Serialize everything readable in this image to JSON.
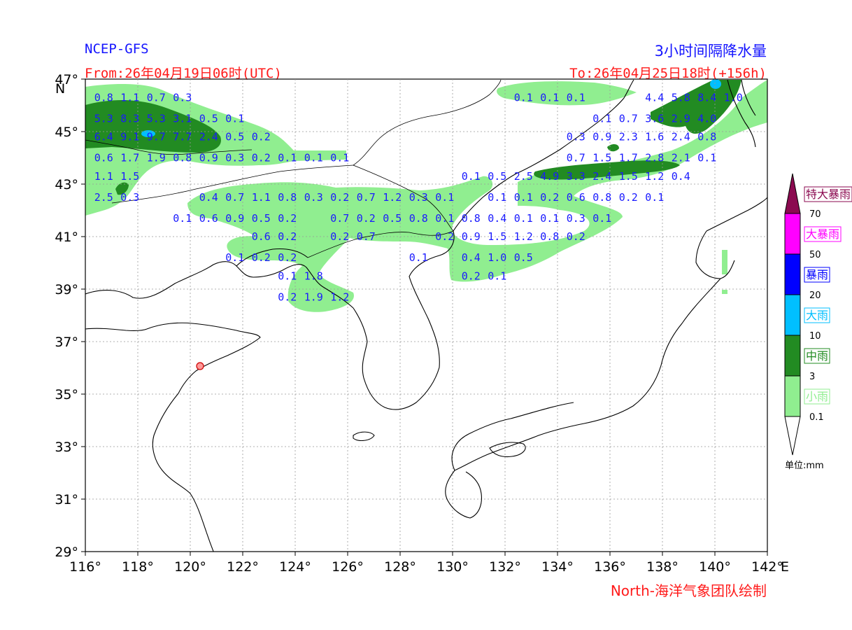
{
  "header": {
    "model": "NCEP-GFS",
    "title": "3小时间隔降水量",
    "from": "From:26年04月19日06时(UTC)",
    "to": "To:26年04月25日18时(+156h)",
    "credit": "North-海洋气象团队绘制"
  },
  "axes": {
    "lon_ticks": [
      "116°",
      "118°",
      "120°",
      "122°",
      "124°",
      "126°",
      "128°",
      "130°",
      "132°",
      "134°",
      "136°",
      "138°",
      "140°",
      "142°"
    ],
    "lon_values": [
      116,
      118,
      120,
      122,
      124,
      126,
      128,
      130,
      132,
      134,
      136,
      138,
      140,
      142
    ],
    "lat_ticks": [
      "47°",
      "45°",
      "43°",
      "41°",
      "39°",
      "37°",
      "35°",
      "33°",
      "31°",
      "29°"
    ],
    "lat_values": [
      47,
      45,
      43,
      41,
      39,
      37,
      35,
      33,
      31,
      29
    ],
    "east_label": "E",
    "north_label": "N",
    "lon_range": [
      116,
      142
    ],
    "lat_range": [
      29,
      47
    ]
  },
  "legend": {
    "unit": "单位:mm",
    "colors": {
      "light": "#90ee90",
      "moderate": "#228b22",
      "heavy": "#00bfff",
      "storm": "#0000ff",
      "big_storm": "#ff00ff",
      "extreme": "#8b0a50"
    },
    "classes": [
      {
        "label": "小雨",
        "color": "#90ee90"
      },
      {
        "label": "中雨",
        "color": "#228b22"
      },
      {
        "label": "大雨",
        "color": "#00bfff"
      },
      {
        "label": "暴雨",
        "color": "#0000ff"
      },
      {
        "label": "大暴雨",
        "color": "#ff00ff"
      },
      {
        "label": "特大暴雨",
        "color": "#8b0a50"
      }
    ],
    "thresholds": [
      "0.1",
      "3",
      "10",
      "20",
      "50",
      "70"
    ]
  },
  "grid_values": [
    {
      "lon": 116.7,
      "lat": 46.3,
      "t": "0.8"
    },
    {
      "lon": 117.7,
      "lat": 46.3,
      "t": "1.1"
    },
    {
      "lon": 118.7,
      "lat": 46.3,
      "t": "0.7"
    },
    {
      "lon": 119.7,
      "lat": 46.3,
      "t": "0.3"
    },
    {
      "lon": 116.7,
      "lat": 45.5,
      "t": "5.3"
    },
    {
      "lon": 117.7,
      "lat": 45.5,
      "t": "8.3"
    },
    {
      "lon": 118.7,
      "lat": 45.5,
      "t": "5.3"
    },
    {
      "lon": 119.7,
      "lat": 45.5,
      "t": "3.1"
    },
    {
      "lon": 120.7,
      "lat": 45.5,
      "t": "0.5"
    },
    {
      "lon": 121.7,
      "lat": 45.5,
      "t": "0.1"
    },
    {
      "lon": 116.7,
      "lat": 44.8,
      "t": "6.4"
    },
    {
      "lon": 117.7,
      "lat": 44.8,
      "t": "9.1"
    },
    {
      "lon": 118.7,
      "lat": 44.8,
      "t": "9.7"
    },
    {
      "lon": 119.7,
      "lat": 44.8,
      "t": "7.7"
    },
    {
      "lon": 120.7,
      "lat": 44.8,
      "t": "2.4"
    },
    {
      "lon": 121.7,
      "lat": 44.8,
      "t": "0.5"
    },
    {
      "lon": 122.7,
      "lat": 44.8,
      "t": "0.2"
    },
    {
      "lon": 116.7,
      "lat": 44.0,
      "t": "0.6"
    },
    {
      "lon": 117.7,
      "lat": 44.0,
      "t": "1.7"
    },
    {
      "lon": 118.7,
      "lat": 44.0,
      "t": "1.9"
    },
    {
      "lon": 119.7,
      "lat": 44.0,
      "t": "0.8"
    },
    {
      "lon": 120.7,
      "lat": 44.0,
      "t": "0.9"
    },
    {
      "lon": 121.7,
      "lat": 44.0,
      "t": "0.3"
    },
    {
      "lon": 122.7,
      "lat": 44.0,
      "t": "0.2"
    },
    {
      "lon": 123.7,
      "lat": 44.0,
      "t": "0.1"
    },
    {
      "lon": 124.7,
      "lat": 44.0,
      "t": "0.1"
    },
    {
      "lon": 125.7,
      "lat": 44.0,
      "t": "0.1"
    },
    {
      "lon": 116.7,
      "lat": 43.3,
      "t": "1.1"
    },
    {
      "lon": 117.7,
      "lat": 43.3,
      "t": "1.5"
    },
    {
      "lon": 116.7,
      "lat": 42.5,
      "t": "2.5"
    },
    {
      "lon": 117.7,
      "lat": 42.5,
      "t": "0.3"
    },
    {
      "lon": 120.7,
      "lat": 42.5,
      "t": "0.4"
    },
    {
      "lon": 121.7,
      "lat": 42.5,
      "t": "0.7"
    },
    {
      "lon": 122.7,
      "lat": 42.5,
      "t": "1.1"
    },
    {
      "lon": 123.7,
      "lat": 42.5,
      "t": "0.8"
    },
    {
      "lon": 124.7,
      "lat": 42.5,
      "t": "0.3"
    },
    {
      "lon": 125.7,
      "lat": 42.5,
      "t": "0.2"
    },
    {
      "lon": 126.7,
      "lat": 42.5,
      "t": "0.7"
    },
    {
      "lon": 127.7,
      "lat": 42.5,
      "t": "1.2"
    },
    {
      "lon": 128.7,
      "lat": 42.5,
      "t": "0.3"
    },
    {
      "lon": 129.7,
      "lat": 42.5,
      "t": "0.1"
    },
    {
      "lon": 119.7,
      "lat": 41.7,
      "t": "0.1"
    },
    {
      "lon": 120.7,
      "lat": 41.7,
      "t": "0.6"
    },
    {
      "lon": 121.7,
      "lat": 41.7,
      "t": "0.9"
    },
    {
      "lon": 122.7,
      "lat": 41.7,
      "t": "0.5"
    },
    {
      "lon": 123.7,
      "lat": 41.7,
      "t": "0.2"
    },
    {
      "lon": 125.7,
      "lat": 41.7,
      "t": "0.7"
    },
    {
      "lon": 126.7,
      "lat": 41.7,
      "t": "0.2"
    },
    {
      "lon": 127.7,
      "lat": 41.7,
      "t": "0.5"
    },
    {
      "lon": 128.7,
      "lat": 41.7,
      "t": "0.8"
    },
    {
      "lon": 129.7,
      "lat": 41.7,
      "t": "0.1"
    },
    {
      "lon": 122.7,
      "lat": 41.0,
      "t": "0.6"
    },
    {
      "lon": 123.7,
      "lat": 41.0,
      "t": "0.2"
    },
    {
      "lon": 125.7,
      "lat": 41.0,
      "t": "0.2"
    },
    {
      "lon": 126.7,
      "lat": 41.0,
      "t": "0.7"
    },
    {
      "lon": 121.7,
      "lat": 40.2,
      "t": "0.1"
    },
    {
      "lon": 122.7,
      "lat": 40.2,
      "t": "0.2"
    },
    {
      "lon": 123.7,
      "lat": 40.2,
      "t": "0.2"
    },
    {
      "lon": 128.7,
      "lat": 40.2,
      "t": "0.1"
    },
    {
      "lon": 123.7,
      "lat": 39.5,
      "t": "0.1"
    },
    {
      "lon": 124.7,
      "lat": 39.5,
      "t": "1.8"
    },
    {
      "lon": 123.7,
      "lat": 38.7,
      "t": "0.2"
    },
    {
      "lon": 124.7,
      "lat": 38.7,
      "t": "1.9"
    },
    {
      "lon": 125.7,
      "lat": 38.7,
      "t": "1.2"
    },
    {
      "lon": 132.7,
      "lat": 46.3,
      "t": "0.1"
    },
    {
      "lon": 133.7,
      "lat": 46.3,
      "t": "0.1"
    },
    {
      "lon": 134.7,
      "lat": 46.3,
      "t": "0.1"
    },
    {
      "lon": 137.7,
      "lat": 46.3,
      "t": "4.4"
    },
    {
      "lon": 138.7,
      "lat": 46.3,
      "t": "5.8"
    },
    {
      "lon": 139.7,
      "lat": 46.3,
      "t": "8.4"
    },
    {
      "lon": 140.7,
      "lat": 46.3,
      "t": "1.0"
    },
    {
      "lon": 135.7,
      "lat": 45.5,
      "t": "0.1"
    },
    {
      "lon": 136.7,
      "lat": 45.5,
      "t": "0.7"
    },
    {
      "lon": 137.7,
      "lat": 45.5,
      "t": "3.6"
    },
    {
      "lon": 138.7,
      "lat": 45.5,
      "t": "2.9"
    },
    {
      "lon": 139.7,
      "lat": 45.5,
      "t": "4.0"
    },
    {
      "lon": 134.7,
      "lat": 44.8,
      "t": "0.3"
    },
    {
      "lon": 135.7,
      "lat": 44.8,
      "t": "0.9"
    },
    {
      "lon": 136.7,
      "lat": 44.8,
      "t": "2.3"
    },
    {
      "lon": 137.7,
      "lat": 44.8,
      "t": "1.6"
    },
    {
      "lon": 138.7,
      "lat": 44.8,
      "t": "2.4"
    },
    {
      "lon": 139.7,
      "lat": 44.8,
      "t": "0.8"
    },
    {
      "lon": 134.7,
      "lat": 44.0,
      "t": "0.7"
    },
    {
      "lon": 135.7,
      "lat": 44.0,
      "t": "1.5"
    },
    {
      "lon": 136.7,
      "lat": 44.0,
      "t": "1.7"
    },
    {
      "lon": 137.7,
      "lat": 44.0,
      "t": "2.8"
    },
    {
      "lon": 138.7,
      "lat": 44.0,
      "t": "2.1"
    },
    {
      "lon": 139.7,
      "lat": 44.0,
      "t": "0.1"
    },
    {
      "lon": 130.7,
      "lat": 43.3,
      "t": "0.1"
    },
    {
      "lon": 131.7,
      "lat": 43.3,
      "t": "0.5"
    },
    {
      "lon": 132.7,
      "lat": 43.3,
      "t": "2.5"
    },
    {
      "lon": 133.7,
      "lat": 43.3,
      "t": "4.9"
    },
    {
      "lon": 134.7,
      "lat": 43.3,
      "t": "3.3"
    },
    {
      "lon": 135.7,
      "lat": 43.3,
      "t": "2.4"
    },
    {
      "lon": 136.7,
      "lat": 43.3,
      "t": "1.5"
    },
    {
      "lon": 137.7,
      "lat": 43.3,
      "t": "1.2"
    },
    {
      "lon": 138.7,
      "lat": 43.3,
      "t": "0.4"
    },
    {
      "lon": 131.7,
      "lat": 42.5,
      "t": "0.1"
    },
    {
      "lon": 132.7,
      "lat": 42.5,
      "t": "0.1"
    },
    {
      "lon": 133.7,
      "lat": 42.5,
      "t": "0.2"
    },
    {
      "lon": 134.7,
      "lat": 42.5,
      "t": "0.6"
    },
    {
      "lon": 135.7,
      "lat": 42.5,
      "t": "0.8"
    },
    {
      "lon": 136.7,
      "lat": 42.5,
      "t": "0.2"
    },
    {
      "lon": 137.7,
      "lat": 42.5,
      "t": "0.1"
    },
    {
      "lon": 130.7,
      "lat": 41.7,
      "t": "0.8"
    },
    {
      "lon": 131.7,
      "lat": 41.7,
      "t": "0.4"
    },
    {
      "lon": 132.7,
      "lat": 41.7,
      "t": "0.1"
    },
    {
      "lon": 133.7,
      "lat": 41.7,
      "t": "0.1"
    },
    {
      "lon": 134.7,
      "lat": 41.7,
      "t": "0.3"
    },
    {
      "lon": 135.7,
      "lat": 41.7,
      "t": "0.1"
    },
    {
      "lon": 129.7,
      "lat": 41.0,
      "t": "0.2"
    },
    {
      "lon": 130.7,
      "lat": 41.0,
      "t": "0.9"
    },
    {
      "lon": 131.7,
      "lat": 41.0,
      "t": "1.5"
    },
    {
      "lon": 132.7,
      "lat": 41.0,
      "t": "1.2"
    },
    {
      "lon": 133.7,
      "lat": 41.0,
      "t": "0.8"
    },
    {
      "lon": 134.7,
      "lat": 41.0,
      "t": "0.2"
    },
    {
      "lon": 130.7,
      "lat": 40.2,
      "t": "0.4"
    },
    {
      "lon": 131.7,
      "lat": 40.2,
      "t": "1.0"
    },
    {
      "lon": 132.7,
      "lat": 40.2,
      "t": "0.5"
    },
    {
      "lon": 130.7,
      "lat": 39.5,
      "t": "0.2"
    },
    {
      "lon": 131.7,
      "lat": 39.5,
      "t": "0.1"
    }
  ]
}
